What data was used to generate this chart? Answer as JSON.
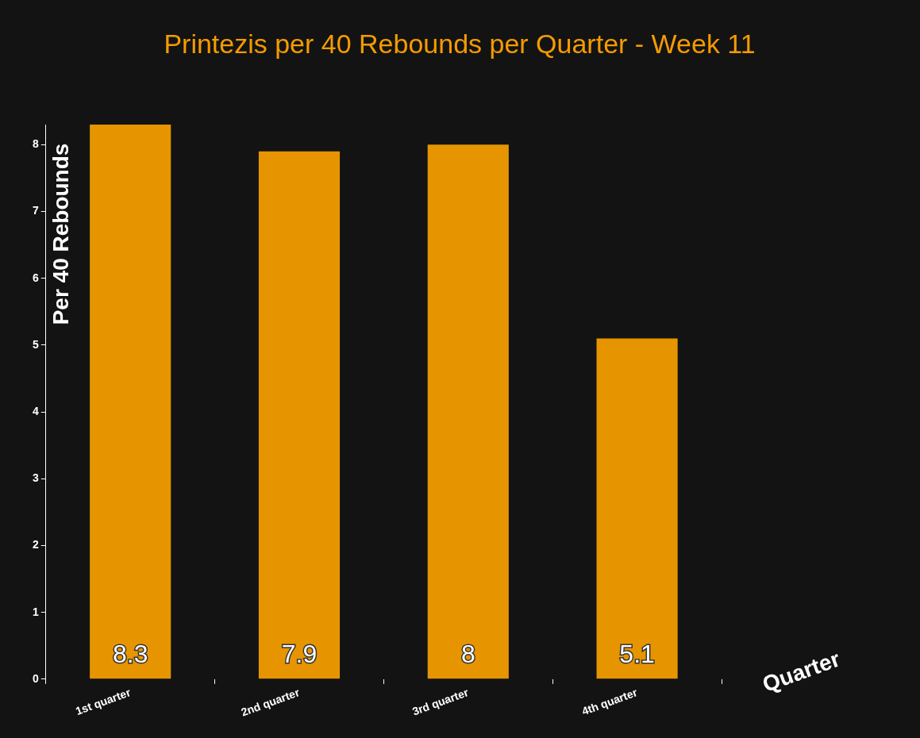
{
  "chart_data": {
    "type": "bar",
    "title": "Printezis per 40 Rebounds per Quarter - Week 11",
    "xlabel": "Quarter",
    "ylabel": "Per 40 Rebounds",
    "categories": [
      "1st quarter",
      "2nd quarter",
      "3rd quarter",
      "4th quarter"
    ],
    "values": [
      8.3,
      7.9,
      8,
      5.1
    ],
    "color": "#e69500",
    "ylim": [
      0,
      8.3
    ],
    "yticks": [
      0,
      1,
      2,
      3,
      4,
      5,
      6,
      7,
      8
    ],
    "grid": false,
    "legend": false,
    "data_labels": true
  }
}
